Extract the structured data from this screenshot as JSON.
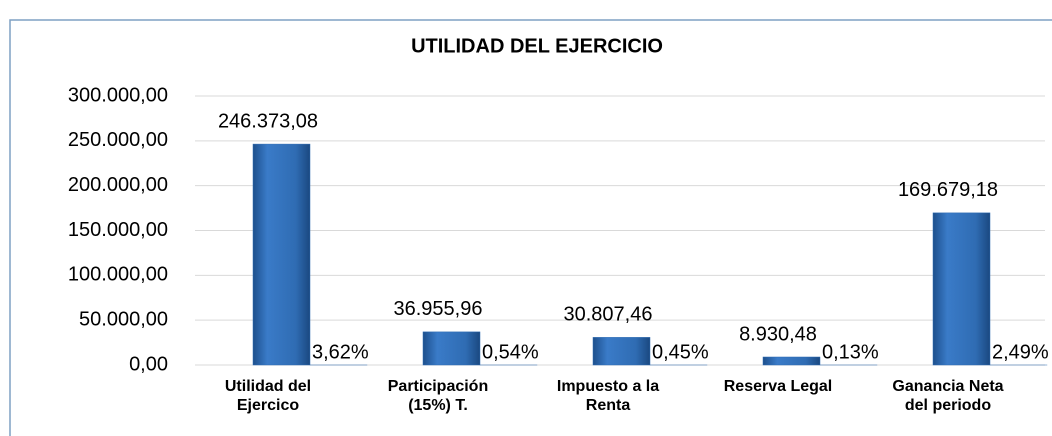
{
  "chart_data": {
    "type": "bar",
    "title": "UTILIDAD DEL EJERCICIO",
    "categories": [
      "Utilidad  del\nEjercico",
      "Participación\n(15%) T.",
      "Impuesto a la\nRenta",
      "Reserva Legal",
      "Ganancia Neta\ndel periodo"
    ],
    "series": [
      {
        "color": "#2f6cb3",
        "values": [
          246373.08,
          36955.96,
          30807.46,
          8930.48,
          169679.18
        ],
        "value_labels": [
          "246.373,08",
          "36.955,96",
          "30.807,46",
          "8.930,48",
          "169.679,18"
        ]
      },
      {
        "color": "#2f6cb3",
        "values": [
          3.62,
          0.54,
          0.45,
          0.13,
          2.49
        ],
        "value_labels": [
          "3,62%",
          "0,54%",
          "0,45%",
          "0,13%",
          "2,49%"
        ]
      }
    ],
    "ylim": [
      0,
      300000
    ],
    "yticks": [
      {
        "value": 0,
        "label": "0,00"
      },
      {
        "value": 50000,
        "label": "50.000,00"
      },
      {
        "value": 100000,
        "label": "100.000,00"
      },
      {
        "value": 150000,
        "label": "150.000,00"
      },
      {
        "value": 200000,
        "label": "200.000,00"
      },
      {
        "value": 250000,
        "label": "250.000,00"
      },
      {
        "value": 300000,
        "label": "300.000,00"
      }
    ],
    "grid": true
  }
}
